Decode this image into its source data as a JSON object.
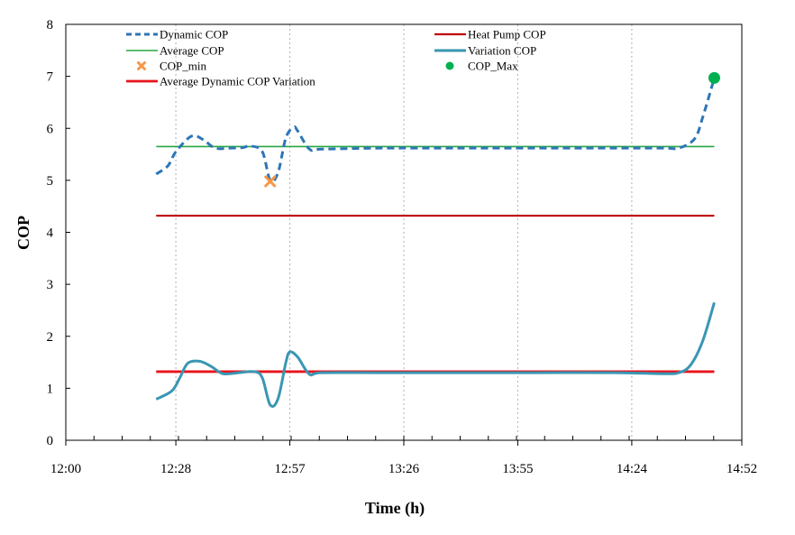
{
  "chart_data": {
    "type": "line",
    "title": "",
    "xlabel": "Time (h)",
    "ylabel": "COP",
    "xlim_minutes": [
      720,
      892
    ],
    "ylim": [
      0,
      8
    ],
    "x_tick_minutes": [
      720,
      748,
      777,
      806,
      835,
      864,
      892
    ],
    "x_tick_labels": [
      "12:00",
      "12:28",
      "12:57",
      "13:26",
      "13:55",
      "14:24",
      "14:52"
    ],
    "y_ticks": [
      0,
      1,
      2,
      3,
      4,
      5,
      6,
      7,
      8
    ],
    "grid": "vertical dotted",
    "legend": [
      {
        "key": "dynamic",
        "label": "Dynamic COP"
      },
      {
        "key": "heatpump",
        "label": "Heat Pump COP"
      },
      {
        "key": "average",
        "label": "Average COP"
      },
      {
        "key": "variation",
        "label": "Variation COP"
      },
      {
        "key": "min",
        "label": "COP_min"
      },
      {
        "key": "max",
        "label": "COP_Max"
      },
      {
        "key": "avgvar",
        "label": "Average Dynamic COP Variation"
      }
    ],
    "series": [
      {
        "key": "dynamic",
        "name": "Dynamic COP",
        "color": "#2E75B6",
        "style": "dashed",
        "points": [
          [
            743,
            5.12
          ],
          [
            746,
            5.28
          ],
          [
            748,
            5.55
          ],
          [
            752,
            5.85
          ],
          [
            755,
            5.78
          ],
          [
            758,
            5.62
          ],
          [
            762,
            5.62
          ],
          [
            765,
            5.63
          ],
          [
            767,
            5.66
          ],
          [
            770,
            5.55
          ],
          [
            772,
            5.0
          ],
          [
            774,
            5.15
          ],
          [
            776,
            5.82
          ],
          [
            778,
            6.02
          ],
          [
            779,
            5.95
          ],
          [
            782,
            5.6
          ],
          [
            785,
            5.6
          ],
          [
            800,
            5.62
          ],
          [
            820,
            5.62
          ],
          [
            840,
            5.62
          ],
          [
            860,
            5.62
          ],
          [
            872,
            5.62
          ],
          [
            876,
            5.62
          ],
          [
            880,
            5.8
          ],
          [
            882,
            6.2
          ],
          [
            885,
            6.97
          ]
        ]
      },
      {
        "key": "heatpump",
        "name": "Heat Pump COP",
        "color": "#C00000",
        "style": "solid",
        "points": [
          [
            743,
            4.32
          ],
          [
            885,
            4.32
          ]
        ]
      },
      {
        "key": "average",
        "name": "Average COP",
        "color": "#27A844",
        "style": "solid",
        "points": [
          [
            743,
            5.65
          ],
          [
            885,
            5.65
          ]
        ]
      },
      {
        "key": "variation",
        "name": "Variation COP",
        "color": "#3A96B3",
        "style": "solid",
        "points": [
          [
            743,
            0.79
          ],
          [
            747,
            0.95
          ],
          [
            749,
            1.2
          ],
          [
            751,
            1.48
          ],
          [
            754,
            1.52
          ],
          [
            757,
            1.42
          ],
          [
            760,
            1.28
          ],
          [
            764,
            1.3
          ],
          [
            768,
            1.32
          ],
          [
            770,
            1.2
          ],
          [
            772,
            0.68
          ],
          [
            774,
            0.8
          ],
          [
            776,
            1.5
          ],
          [
            777,
            1.7
          ],
          [
            779,
            1.6
          ],
          [
            782,
            1.27
          ],
          [
            785,
            1.3
          ],
          [
            800,
            1.3
          ],
          [
            820,
            1.3
          ],
          [
            840,
            1.3
          ],
          [
            860,
            1.3
          ],
          [
            872,
            1.28
          ],
          [
            876,
            1.3
          ],
          [
            879,
            1.45
          ],
          [
            882,
            1.9
          ],
          [
            885,
            2.65
          ]
        ]
      },
      {
        "key": "avgvar",
        "name": "Average Dynamic COP Variation",
        "color": "#E8131B",
        "style": "solid",
        "points": [
          [
            743,
            1.32
          ],
          [
            885,
            1.32
          ]
        ]
      }
    ],
    "markers": [
      {
        "key": "min",
        "name": "COP_min",
        "x": 772,
        "y": 4.98,
        "shape": "x",
        "color": "#F79646"
      },
      {
        "key": "max",
        "name": "COP_Max",
        "x": 885,
        "y": 6.97,
        "shape": "circle",
        "color": "#00B050"
      }
    ]
  }
}
